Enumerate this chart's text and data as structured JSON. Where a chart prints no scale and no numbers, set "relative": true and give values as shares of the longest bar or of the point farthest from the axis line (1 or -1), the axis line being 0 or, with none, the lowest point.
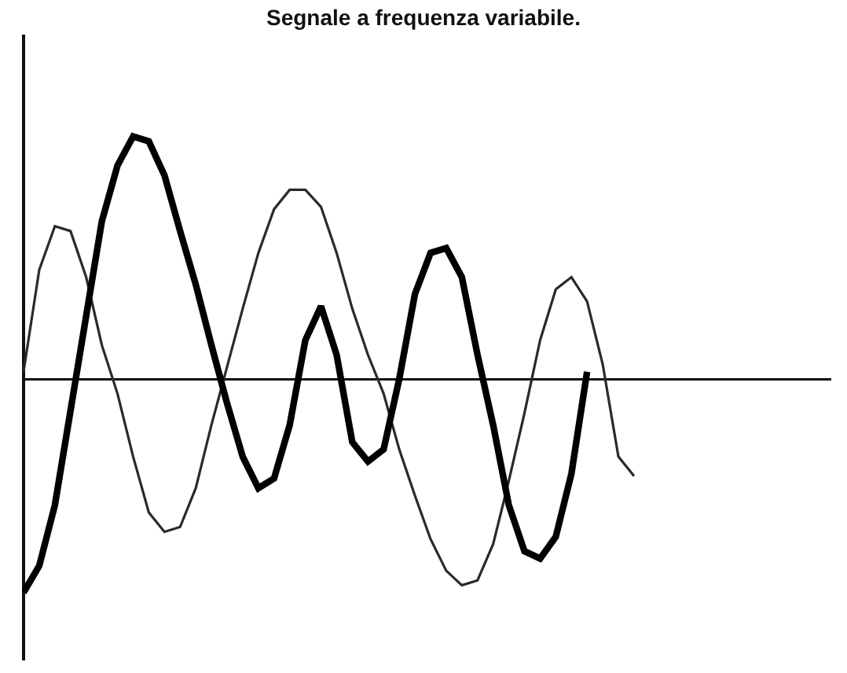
{
  "chart_data": {
    "type": "line",
    "title": "Segnale a frequenza variabile.",
    "relative": true,
    "grid": false,
    "legend": false,
    "categories": [
      null,
      null,
      null,
      null,
      null,
      null,
      null,
      null,
      null,
      null,
      null,
      null,
      null,
      null,
      null,
      null,
      null,
      null,
      null,
      null,
      null,
      null,
      null,
      null,
      null,
      null,
      null,
      null,
      null,
      null,
      null,
      null,
      null,
      null,
      null,
      null,
      null,
      null,
      null,
      null
    ],
    "series": [
      {
        "color": "#2a2a2a",
        "values": [
          0.03,
          0.45,
          0.63,
          0.61,
          0.42,
          0.14,
          -0.06,
          -0.32,
          -0.55,
          -0.63,
          -0.61,
          -0.45,
          -0.19,
          0.05,
          0.29,
          0.52,
          0.7,
          0.78,
          0.78,
          0.71,
          0.52,
          0.29,
          0.1,
          -0.06,
          -0.29,
          -0.48,
          -0.66,
          -0.79,
          -0.85,
          -0.83,
          -0.68,
          -0.42,
          -0.14,
          0.16,
          0.37,
          0.42,
          0.32,
          0.06,
          -0.32,
          -0.4
        ]
      },
      {
        "color": "#000000",
        "values": [
          -0.88,
          -0.77,
          -0.52,
          -0.13,
          0.26,
          0.65,
          0.88,
          1,
          0.98,
          0.84,
          0.61,
          0.39,
          0.14,
          -0.1,
          -0.32,
          -0.45,
          -0.41,
          -0.19,
          0.16,
          0.3,
          0.1,
          -0.26,
          -0.34,
          -0.29,
          0,
          0.35,
          0.52,
          0.54,
          0.42,
          0.1,
          -0.19,
          -0.52,
          -0.71,
          -0.74,
          -0.65,
          -0.39,
          0.03,
          null,
          null,
          null
        ]
      }
    ]
  }
}
